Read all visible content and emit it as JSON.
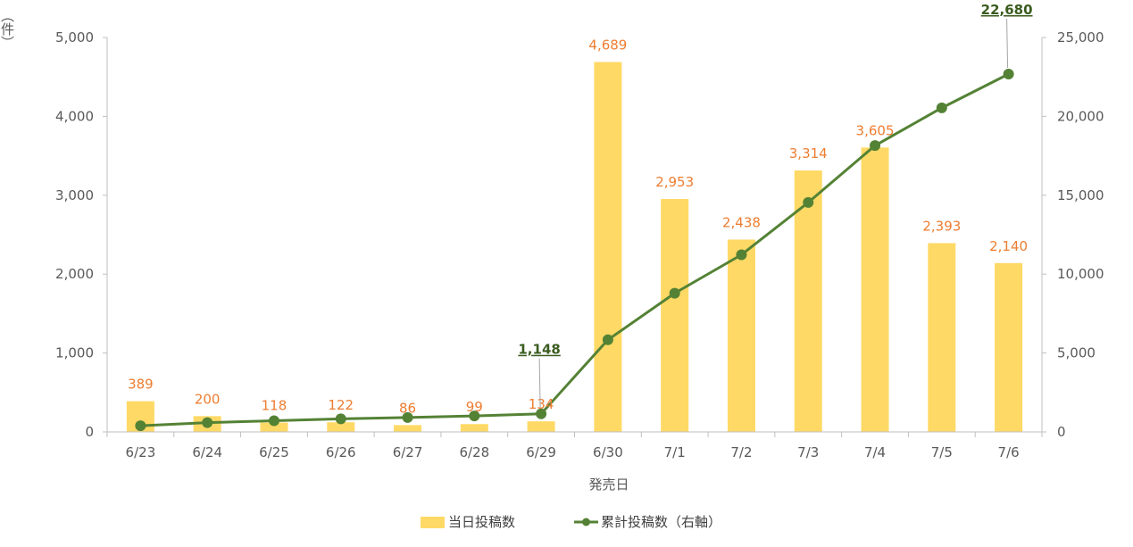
{
  "chart_data": {
    "type": "bar",
    "categories": [
      "6/23",
      "6/24",
      "6/25",
      "6/26",
      "6/27",
      "6/28",
      "6/29",
      "6/30",
      "7/1",
      "7/2",
      "7/3",
      "7/4",
      "7/5",
      "7/6"
    ],
    "series": [
      {
        "name": "当日投稿数",
        "chart_type": "bar",
        "axis": "left",
        "values": [
          389,
          200,
          118,
          122,
          86,
          99,
          134,
          4689,
          2953,
          2438,
          3314,
          3605,
          2393,
          2140
        ],
        "color": "#FFD966",
        "label_color": "#ED7D31"
      },
      {
        "name": "累計投稿数（右軸）",
        "chart_type": "line",
        "axis": "right",
        "values": [
          389,
          589,
          707,
          829,
          915,
          1014,
          1148,
          5837,
          8790,
          11228,
          14542,
          18147,
          20540,
          22680
        ],
        "color": "#548235",
        "callouts": [
          {
            "category": "6/29",
            "text": "1,148"
          },
          {
            "category": "7/6",
            "text": "22,680"
          }
        ]
      }
    ],
    "xlabel": "発売日",
    "ylabel_left_unit": "（件）",
    "ylim_left": [
      0,
      5000
    ],
    "yticks_left": [
      "0",
      "1,000",
      "2,000",
      "3,000",
      "4,000",
      "5,000"
    ],
    "ylim_right": [
      0,
      25000
    ],
    "yticks_right": [
      "0",
      "5,000",
      "10,000",
      "15,000",
      "20,000",
      "25,000"
    ],
    "bar_labels": [
      "389",
      "200",
      "118",
      "122",
      "86",
      "99",
      "134",
      "4,689",
      "2,953",
      "2,438",
      "3,314",
      "3,605",
      "2,393",
      "2,140"
    ],
    "grid": false,
    "legend_position": "bottom"
  }
}
